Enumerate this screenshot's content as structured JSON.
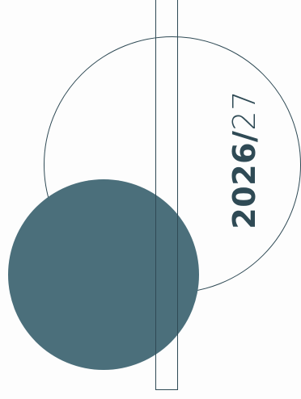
{
  "cover": {
    "year_main": "2026/",
    "year_suffix": "27"
  },
  "colors": {
    "background": "#fdfdfd",
    "accent": "#4b6f7b",
    "line": "#2f4a55"
  }
}
